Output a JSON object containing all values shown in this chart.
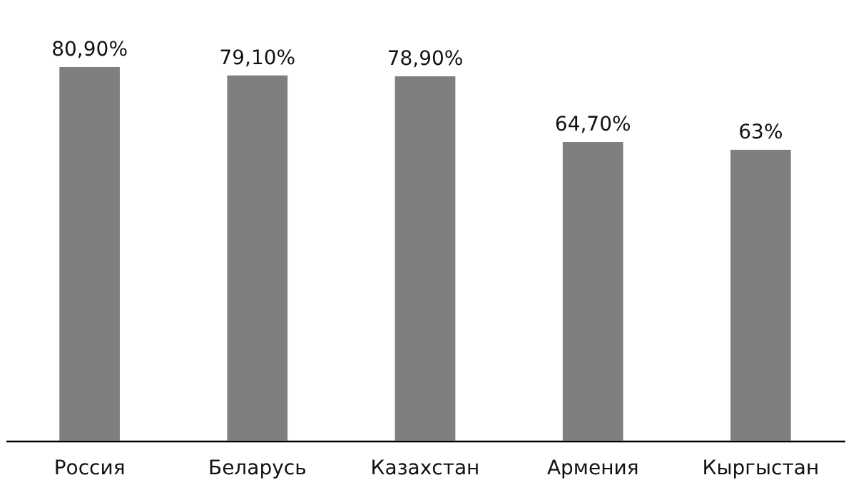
{
  "chart_data": {
    "type": "bar",
    "categories": [
      "Россия",
      "Беларусь",
      "Казахстан",
      "Армения",
      "Кыргыстан"
    ],
    "values": [
      80.9,
      79.1,
      78.9,
      64.7,
      63
    ],
    "value_labels": [
      "80,90%",
      "79,10%",
      "78,90%",
      "64,70%",
      "63%"
    ],
    "color": "#7f7f80"
  }
}
